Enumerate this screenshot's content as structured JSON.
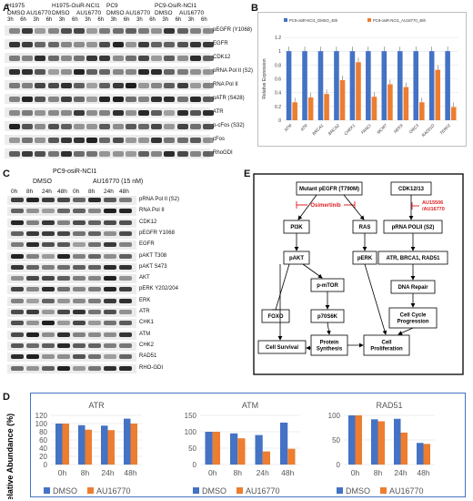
{
  "panel_letters": {
    "a": "A",
    "b": "B",
    "c": "C",
    "d": "D",
    "e": "E"
  },
  "panelA": {
    "groups": [
      "H1975",
      "H1975-OsiR-NCI1",
      "PC9",
      "PC9-OsiR-NCI1"
    ],
    "treatments": [
      "DMSO",
      "AU16770",
      "DMSO",
      "AU16770",
      "DMSO",
      "AU16770",
      "DMSO",
      "AU16770"
    ],
    "times": [
      "3h",
      "6h",
      "3h",
      "6h",
      "3h",
      "6h",
      "3h",
      "6h",
      "3h",
      "6h",
      "3h",
      "6h",
      "3h",
      "6h",
      "3h",
      "6h"
    ],
    "rows": [
      "pEGFR (Y1068)",
      "EGFR",
      "CDK12",
      "pRNA Pol II (S2)",
      "RNA Pol II",
      "pATR (S428)",
      "ATR",
      "p-cFos (S32)",
      "cFos",
      "RhoGDI"
    ]
  },
  "panelC": {
    "title": "PC9-osiR-NCI1",
    "treatments": [
      "DMSO",
      "AU16770 (15 nM)"
    ],
    "times": [
      "0h",
      "8h",
      "24h",
      "48h",
      "0h",
      "8h",
      "24h",
      "48h"
    ],
    "rows": [
      "pRNA Pol II (S2)",
      "RNA Pol II",
      "CDK12",
      "pEGFR Y1068",
      "EGFR",
      "pAKT T308",
      "pAKT S473",
      "AKT",
      "pERK Y202/204",
      "ERK",
      "ATR",
      "CHK1",
      "ATM",
      "CHK2",
      "RAD51",
      "RHO-GDI"
    ]
  },
  "panelE": {
    "nodes": {
      "mutant_egfr": "Mutant pEGFR (T790M)",
      "cdk12": "CDK12/13",
      "osimertinib": "Osimertinib",
      "au": "AU15506\n/AU16770",
      "pi3k": "PI3K",
      "ras": "RAS",
      "prna": "pRNA POLII (S2)",
      "pakt": "pAKT",
      "perk": "pERK",
      "atr": "ATR, BRCA1, RAD51",
      "mtor": "p-mTOR",
      "dna": "DNA Repair",
      "foxo": "FOXO",
      "p70": "p70S6K",
      "ccp": "Cell Cycle\nProgression",
      "survival": "Cell Survival",
      "protein": "Protein\nSynthesis",
      "prolif": "Cell\nProliferation"
    }
  },
  "colors": {
    "blue": "#4472c4",
    "orange": "#ed7d31",
    "red": "#e02020"
  },
  "chart_data": [
    {
      "type": "bar",
      "panel": "B",
      "categories": [
        "ATM",
        "ATR",
        "BRCA1",
        "BRCA2",
        "CHEK1",
        "FANCI",
        "MCM7",
        "NEK9",
        "ORC3",
        "RAD51D",
        "TERF2"
      ],
      "series": [
        {
          "name": "PC9-osiR-NCI1_DMSO_48h",
          "values": [
            1,
            1,
            1,
            1,
            1,
            1,
            1,
            1,
            1,
            1,
            1
          ]
        },
        {
          "name": "PC9-osiR-NCI1_AU16770_48h",
          "values": [
            0.26,
            0.33,
            0.38,
            0.58,
            0.84,
            0.34,
            0.52,
            0.48,
            0.26,
            0.73,
            0.19
          ]
        }
      ],
      "ylabel": "Relative Expression",
      "ylim": [
        0,
        1.2
      ],
      "yticks": [
        "0",
        "0.2",
        "0.4",
        "0.6",
        "0.8",
        "1",
        "1.2"
      ],
      "legend": "top"
    },
    {
      "type": "bar",
      "panel": "D",
      "title": "ATR",
      "categories": [
        "0h",
        "8h",
        "24h",
        "48h"
      ],
      "series": [
        {
          "name": "DMSO",
          "values": [
            100,
            96,
            95,
            112
          ]
        },
        {
          "name": "AU16770",
          "values": [
            100,
            85,
            84,
            100
          ]
        }
      ],
      "ylabel": "Relative Abundance (%)",
      "ylim": [
        0,
        120
      ],
      "yticks": [
        "0",
        "20",
        "40",
        "60",
        "80",
        "100",
        "120"
      ]
    },
    {
      "type": "bar",
      "panel": "D",
      "title": "ATM",
      "categories": [
        "0h",
        "8h",
        "24h",
        "48h"
      ],
      "series": [
        {
          "name": "DMSO",
          "values": [
            100,
            95,
            90,
            128
          ]
        },
        {
          "name": "AU16770",
          "values": [
            100,
            80,
            40,
            48
          ]
        }
      ],
      "ylim": [
        0,
        150
      ],
      "yticks": [
        "0",
        "50",
        "100",
        "150"
      ]
    },
    {
      "type": "bar",
      "panel": "D",
      "title": "RAD51",
      "categories": [
        "0h",
        "8h",
        "24h",
        "48h"
      ],
      "series": [
        {
          "name": "DMSO",
          "values": [
            100,
            92,
            93,
            44
          ]
        },
        {
          "name": "AU16770",
          "values": [
            100,
            88,
            65,
            42
          ]
        }
      ],
      "ylim": [
        0,
        100
      ],
      "yticks": [
        "0",
        "50",
        "100"
      ]
    }
  ]
}
